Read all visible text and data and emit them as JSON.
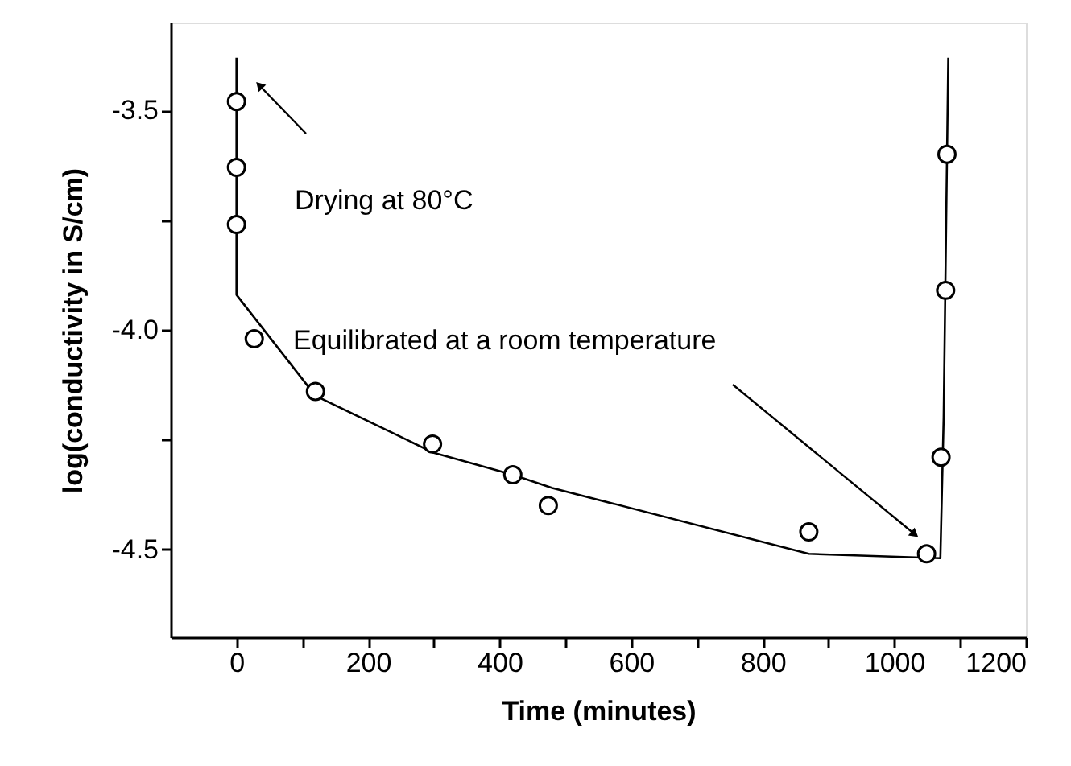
{
  "chart_data": {
    "type": "scatter",
    "xlabel": "Time (minutes)",
    "ylabel": "log(conductivity in S/cm)",
    "annotations": [
      "Drying at 80°C",
      "Equilibrated at a room temperature"
    ],
    "xlim": [
      -100,
      1200
    ],
    "xticks": [
      0,
      {
        "value": 100,
        "label": null
      },
      200,
      {
        "value": 300,
        "label": null
      },
      400,
      {
        "value": 500,
        "label": null
      },
      600,
      {
        "value": 700,
        "label": null
      },
      800,
      {
        "value": 900,
        "label": null
      },
      1000,
      {
        "value": 1100,
        "label": null
      },
      1200
    ],
    "ylim": [
      -4.7,
      -3.3
    ],
    "yticks": [
      {
        "value": -4.5,
        "label": "-4.5"
      },
      {
        "value": -4.25,
        "label": null
      },
      {
        "value": -4.0,
        "label": "-4.0"
      },
      {
        "value": -3.75,
        "label": null
      },
      {
        "value": -3.5,
        "label": "-3.5"
      }
    ],
    "grid": false,
    "series": [
      {
        "type": "line",
        "color": "#000000",
        "marker": "none",
        "line_style": "solid",
        "x": [
          0,
          0,
          120,
          300,
          420,
          480,
          870,
          1070,
          1075,
          1082
        ],
        "values": [
          -3.38,
          -3.92,
          -4.15,
          -4.28,
          -4.33,
          -4.36,
          -4.51,
          -4.52,
          -4.2,
          -3.38
        ]
      },
      {
        "color": "#000000",
        "marker": "circle",
        "x": [
          0,
          0,
          0,
          27,
          120,
          298,
          420,
          474,
          870,
          1049,
          1071,
          1078,
          1080
        ],
        "values": [
          -3.48,
          -3.63,
          -3.76,
          -4.02,
          -4.14,
          -4.26,
          -4.33,
          -4.4,
          -4.46,
          -4.51,
          -4.29,
          -3.91,
          -3.6
        ]
      }
    ]
  }
}
